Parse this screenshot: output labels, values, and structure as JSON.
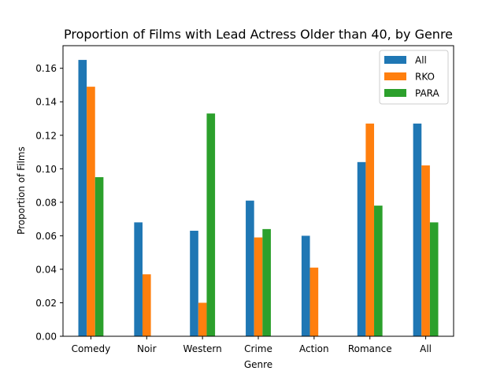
{
  "chart_data": {
    "type": "bar",
    "title": "Proportion of Films with Lead Actress Older than 40, by Genre",
    "xlabel": "Genre",
    "ylabel": "Proportion of Films",
    "categories": [
      "Comedy",
      "Noir",
      "Western",
      "Crime",
      "Action",
      "Romance",
      "All"
    ],
    "series": [
      {
        "name": "All",
        "color": "#1f77b4",
        "values": [
          0.165,
          0.068,
          0.063,
          0.081,
          0.06,
          0.104,
          0.127
        ]
      },
      {
        "name": "RKO",
        "color": "#ff7f0e",
        "values": [
          0.149,
          0.037,
          0.02,
          0.059,
          0.041,
          0.127,
          0.102
        ]
      },
      {
        "name": "PARA",
        "color": "#2ca02c",
        "values": [
          0.095,
          0.0,
          0.133,
          0.064,
          0.0,
          0.078,
          0.068
        ]
      }
    ],
    "ylim": [
      0,
      0.1735
    ],
    "yticks": [
      0.0,
      0.02,
      0.04,
      0.06,
      0.08,
      0.1,
      0.12,
      0.14,
      0.16
    ],
    "ytick_labels": [
      "0.00",
      "0.02",
      "0.04",
      "0.06",
      "0.08",
      "0.10",
      "0.12",
      "0.14",
      "0.16"
    ],
    "grid": false,
    "legend_position": "top-right"
  }
}
